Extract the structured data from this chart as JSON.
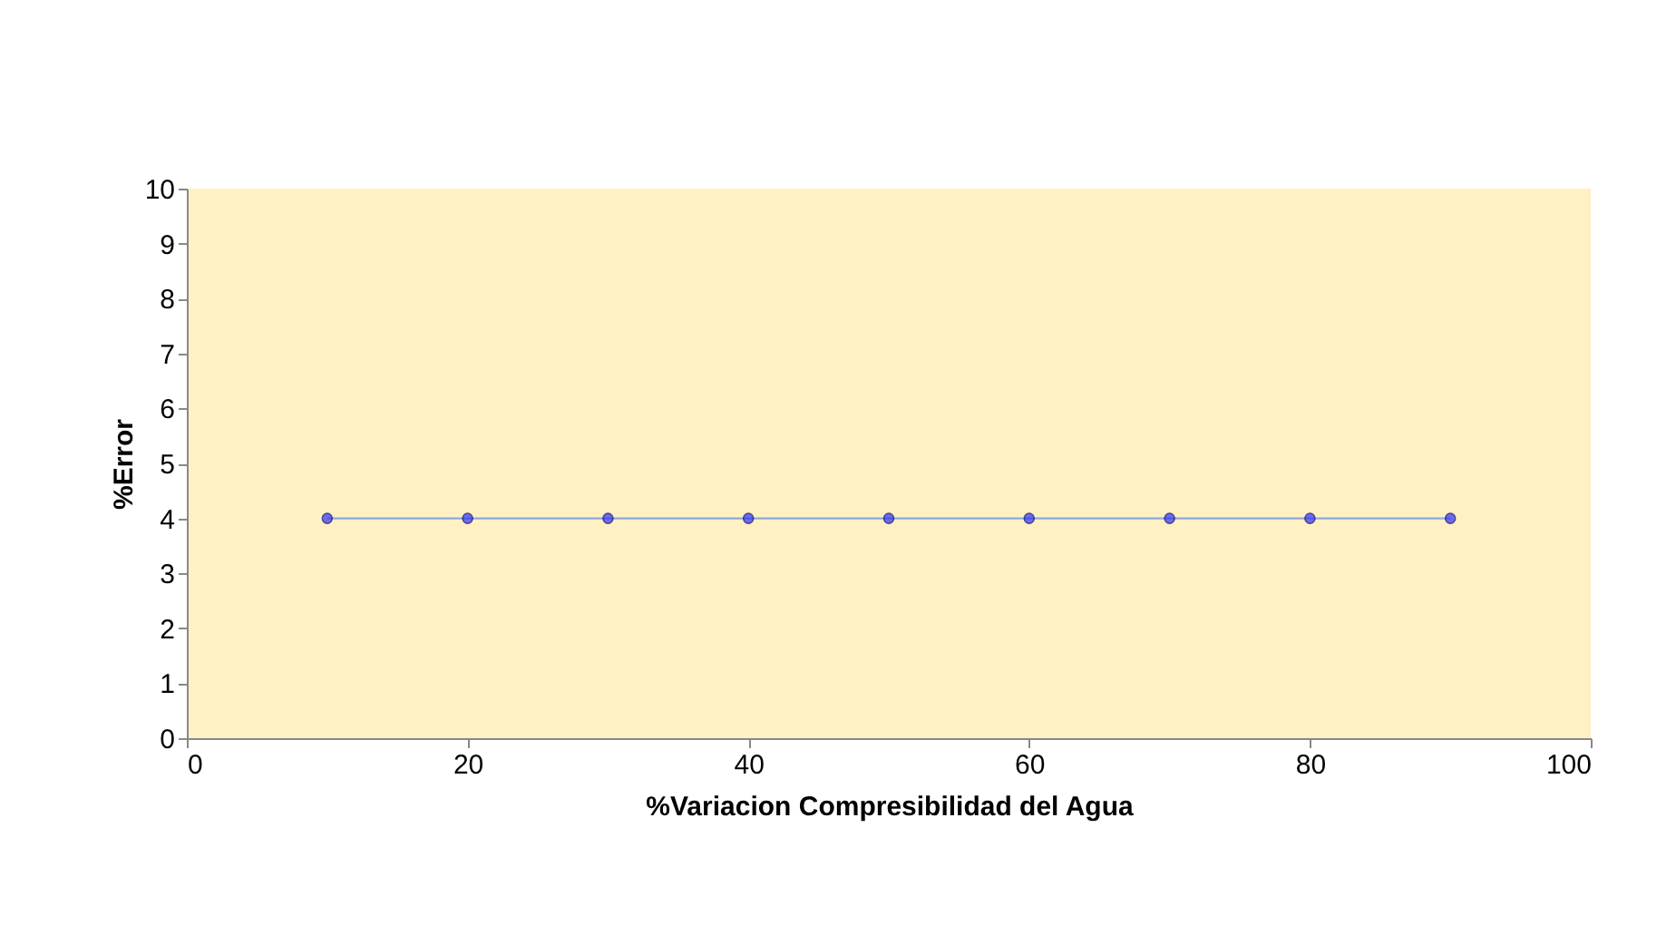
{
  "chart_data": {
    "type": "line",
    "xlabel": "%Variacion Compresibilidad del Agua",
    "ylabel": "%Error",
    "x": [
      10,
      20,
      30,
      40,
      50,
      60,
      70,
      80,
      90
    ],
    "series": [
      {
        "color": "#3333ff",
        "values": [
          4,
          4,
          4,
          4,
          4,
          4,
          4,
          4,
          4
        ]
      }
    ],
    "xlim": [
      0,
      100
    ],
    "xticks": [
      0,
      20,
      40,
      60,
      80,
      100
    ],
    "ylim": [
      0,
      10
    ],
    "yticks": [
      0,
      1,
      2,
      3,
      4,
      5,
      6,
      7,
      8,
      9,
      10
    ],
    "grid": false,
    "marker": "circle",
    "line_style": "solid"
  }
}
